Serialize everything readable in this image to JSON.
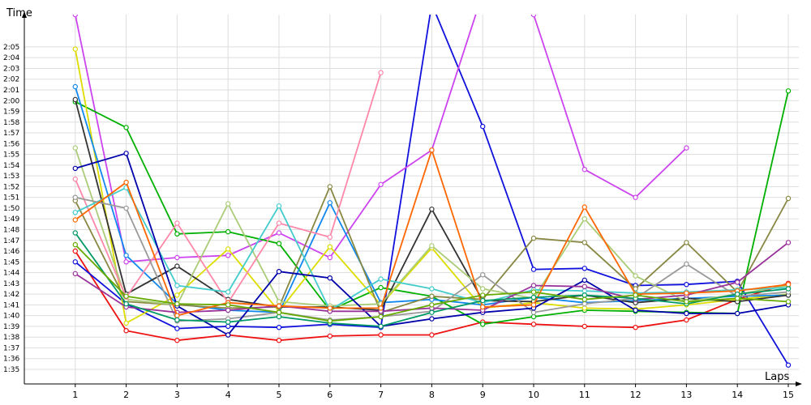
{
  "chart_data": {
    "type": "line",
    "ylabel": "Time",
    "xlabel": "Laps",
    "x": [
      1,
      2,
      3,
      4,
      5,
      6,
      7,
      8,
      9,
      10,
      11,
      12,
      13,
      14,
      15
    ],
    "xlim": [
      0,
      15
    ],
    "ylim": [
      93.5,
      128
    ],
    "y_ticks": [
      {
        "v": 95,
        "label": "1:35"
      },
      {
        "v": 96,
        "label": "1:36"
      },
      {
        "v": 97,
        "label": "1:37"
      },
      {
        "v": 98,
        "label": "1:38"
      },
      {
        "v": 99,
        "label": "1:39"
      },
      {
        "v": 100,
        "label": "1:40"
      },
      {
        "v": 101,
        "label": "1:41"
      },
      {
        "v": 102,
        "label": "1:42"
      },
      {
        "v": 103,
        "label": "1:43"
      },
      {
        "v": 104,
        "label": "1:44"
      },
      {
        "v": 105,
        "label": "1:45"
      },
      {
        "v": 106,
        "label": "1:46"
      },
      {
        "v": 107,
        "label": "1:47"
      },
      {
        "v": 108,
        "label": "1:48"
      },
      {
        "v": 109,
        "label": "1:49"
      },
      {
        "v": 110,
        "label": "1:50"
      },
      {
        "v": 111,
        "label": "1:51"
      },
      {
        "v": 112,
        "label": "1:52"
      },
      {
        "v": 113,
        "label": "1:53"
      },
      {
        "v": 114,
        "label": "1:54"
      },
      {
        "v": 115,
        "label": "1:55"
      },
      {
        "v": 116,
        "label": "1:56"
      },
      {
        "v": 117,
        "label": "1:57"
      },
      {
        "v": 118,
        "label": "1:58"
      },
      {
        "v": 119,
        "label": "1:59"
      },
      {
        "v": 120,
        "label": "2:00"
      },
      {
        "v": 121,
        "label": "2:01"
      },
      {
        "v": 122,
        "label": "2:02"
      },
      {
        "v": 123,
        "label": "2:03"
      },
      {
        "v": 124,
        "label": "2:04"
      },
      {
        "v": 125,
        "label": "2:05"
      }
    ],
    "x_tick_labels": [
      "1",
      "2",
      "3",
      "4",
      "5",
      "6",
      "7",
      "8",
      "9",
      "10",
      "11",
      "12",
      "13",
      "14",
      "15"
    ],
    "grid": true,
    "legend": "none",
    "series": [
      {
        "color": "#ee1111",
        "values": [
          106.0,
          98.6,
          97.7,
          98.2,
          97.7,
          98.1,
          98.2,
          98.2,
          99.4,
          99.2,
          99.0,
          98.9,
          99.6,
          101.5,
          103.0
        ]
      },
      {
        "color": "#1111dd",
        "values": [
          105.0,
          101.1,
          98.8,
          99.0,
          98.9,
          99.2,
          98.9,
          129.0,
          117.6,
          104.3,
          104.4,
          102.8,
          102.9,
          103.2,
          95.4
        ]
      },
      {
        "color": "#cc44ee",
        "values": [
          128.0,
          105.0,
          105.4,
          105.6,
          107.7,
          105.4,
          112.2,
          115.4,
          130.0,
          128.0,
          113.6,
          111.0,
          115.6,
          null,
          null
        ]
      },
      {
        "color": "#00b000",
        "values": [
          119.9,
          117.5,
          107.6,
          107.8,
          106.7,
          100.5,
          102.6,
          101.8,
          99.2,
          99.9,
          100.5,
          100.4,
          100.3,
          100.2,
          120.9
        ]
      },
      {
        "color": "#dddd00",
        "values": [
          124.8,
          99.3,
          101.9,
          106.2,
          100.4,
          106.4,
          101.0,
          106.3,
          100.7,
          101.2,
          100.7,
          100.6,
          101.0,
          101.5,
          102.0
        ]
      },
      {
        "color": "#1188ee",
        "values": [
          121.3,
          105.6,
          101.1,
          100.5,
          100.3,
          110.5,
          101.2,
          101.5,
          101.0,
          101.7,
          101.2,
          101.4,
          101.6,
          101.8,
          101.9
        ]
      },
      {
        "color": "#333333",
        "values": [
          120.1,
          102.0,
          104.6,
          101.5,
          100.8,
          100.8,
          100.5,
          109.9,
          101.4,
          101.3,
          101.9,
          101.2,
          101.6,
          101.3,
          101.9
        ]
      },
      {
        "color": "#888844",
        "values": [
          110.7,
          101.3,
          101.0,
          100.7,
          100.8,
          112.0,
          100.3,
          101.8,
          101.5,
          107.2,
          106.8,
          102.5,
          106.8,
          102.2,
          110.9
        ]
      },
      {
        "color": "#aacc77",
        "values": [
          115.6,
          101.5,
          101.0,
          110.4,
          101.3,
          100.9,
          101.1,
          106.5,
          102.5,
          101.6,
          109.0,
          103.7,
          101.3,
          102.0,
          102.8
        ]
      },
      {
        "color": "#ff88aa",
        "values": [
          112.7,
          101.7,
          108.6,
          101.2,
          108.6,
          107.3,
          122.6,
          null,
          null,
          null,
          null,
          null,
          null,
          null,
          null
        ]
      },
      {
        "color": "#44cccc",
        "values": [
          109.6,
          111.9,
          102.8,
          102.2,
          110.2,
          100.5,
          103.4,
          102.5,
          101.2,
          102.4,
          102.3,
          102.1,
          102.2,
          102.4,
          102.6
        ]
      },
      {
        "color": "#999999",
        "values": [
          111.0,
          110.0,
          99.5,
          99.7,
          100.3,
          99.6,
          99.9,
          100.4,
          103.8,
          100.3,
          101.1,
          101.6,
          104.8,
          101.8,
          102.2
        ]
      },
      {
        "color": "#0000aa",
        "values": [
          113.7,
          115.1,
          100.9,
          98.2,
          104.1,
          103.5,
          99.0,
          99.7,
          100.3,
          100.7,
          103.3,
          100.5,
          100.2,
          100.2,
          101.0
        ]
      },
      {
        "color": "#993399",
        "values": [
          103.9,
          100.8,
          100.3,
          100.5,
          100.9,
          100.4,
          100.4,
          100.7,
          100.5,
          102.8,
          102.7,
          101.5,
          101.9,
          103.1,
          106.8
        ]
      },
      {
        "color": "#ff6600",
        "values": [
          108.9,
          112.4,
          100.0,
          101.2,
          100.9,
          100.7,
          100.7,
          115.4,
          100.8,
          101.0,
          110.1,
          102.0,
          102.1,
          102.3,
          102.9
        ]
      },
      {
        "color": "#009966",
        "values": [
          107.7,
          101.1,
          99.6,
          99.4,
          99.9,
          99.3,
          99.0,
          100.3,
          101.4,
          101.7,
          101.9,
          101.6,
          101.1,
          102.0,
          102.5
        ]
      },
      {
        "color": "#66aa00",
        "values": [
          106.6,
          101.8,
          101.1,
          101.0,
          100.3,
          99.5,
          99.9,
          101.0,
          101.9,
          102.2,
          101.5,
          101.9,
          101.3,
          101.6,
          101.3
        ]
      }
    ]
  }
}
